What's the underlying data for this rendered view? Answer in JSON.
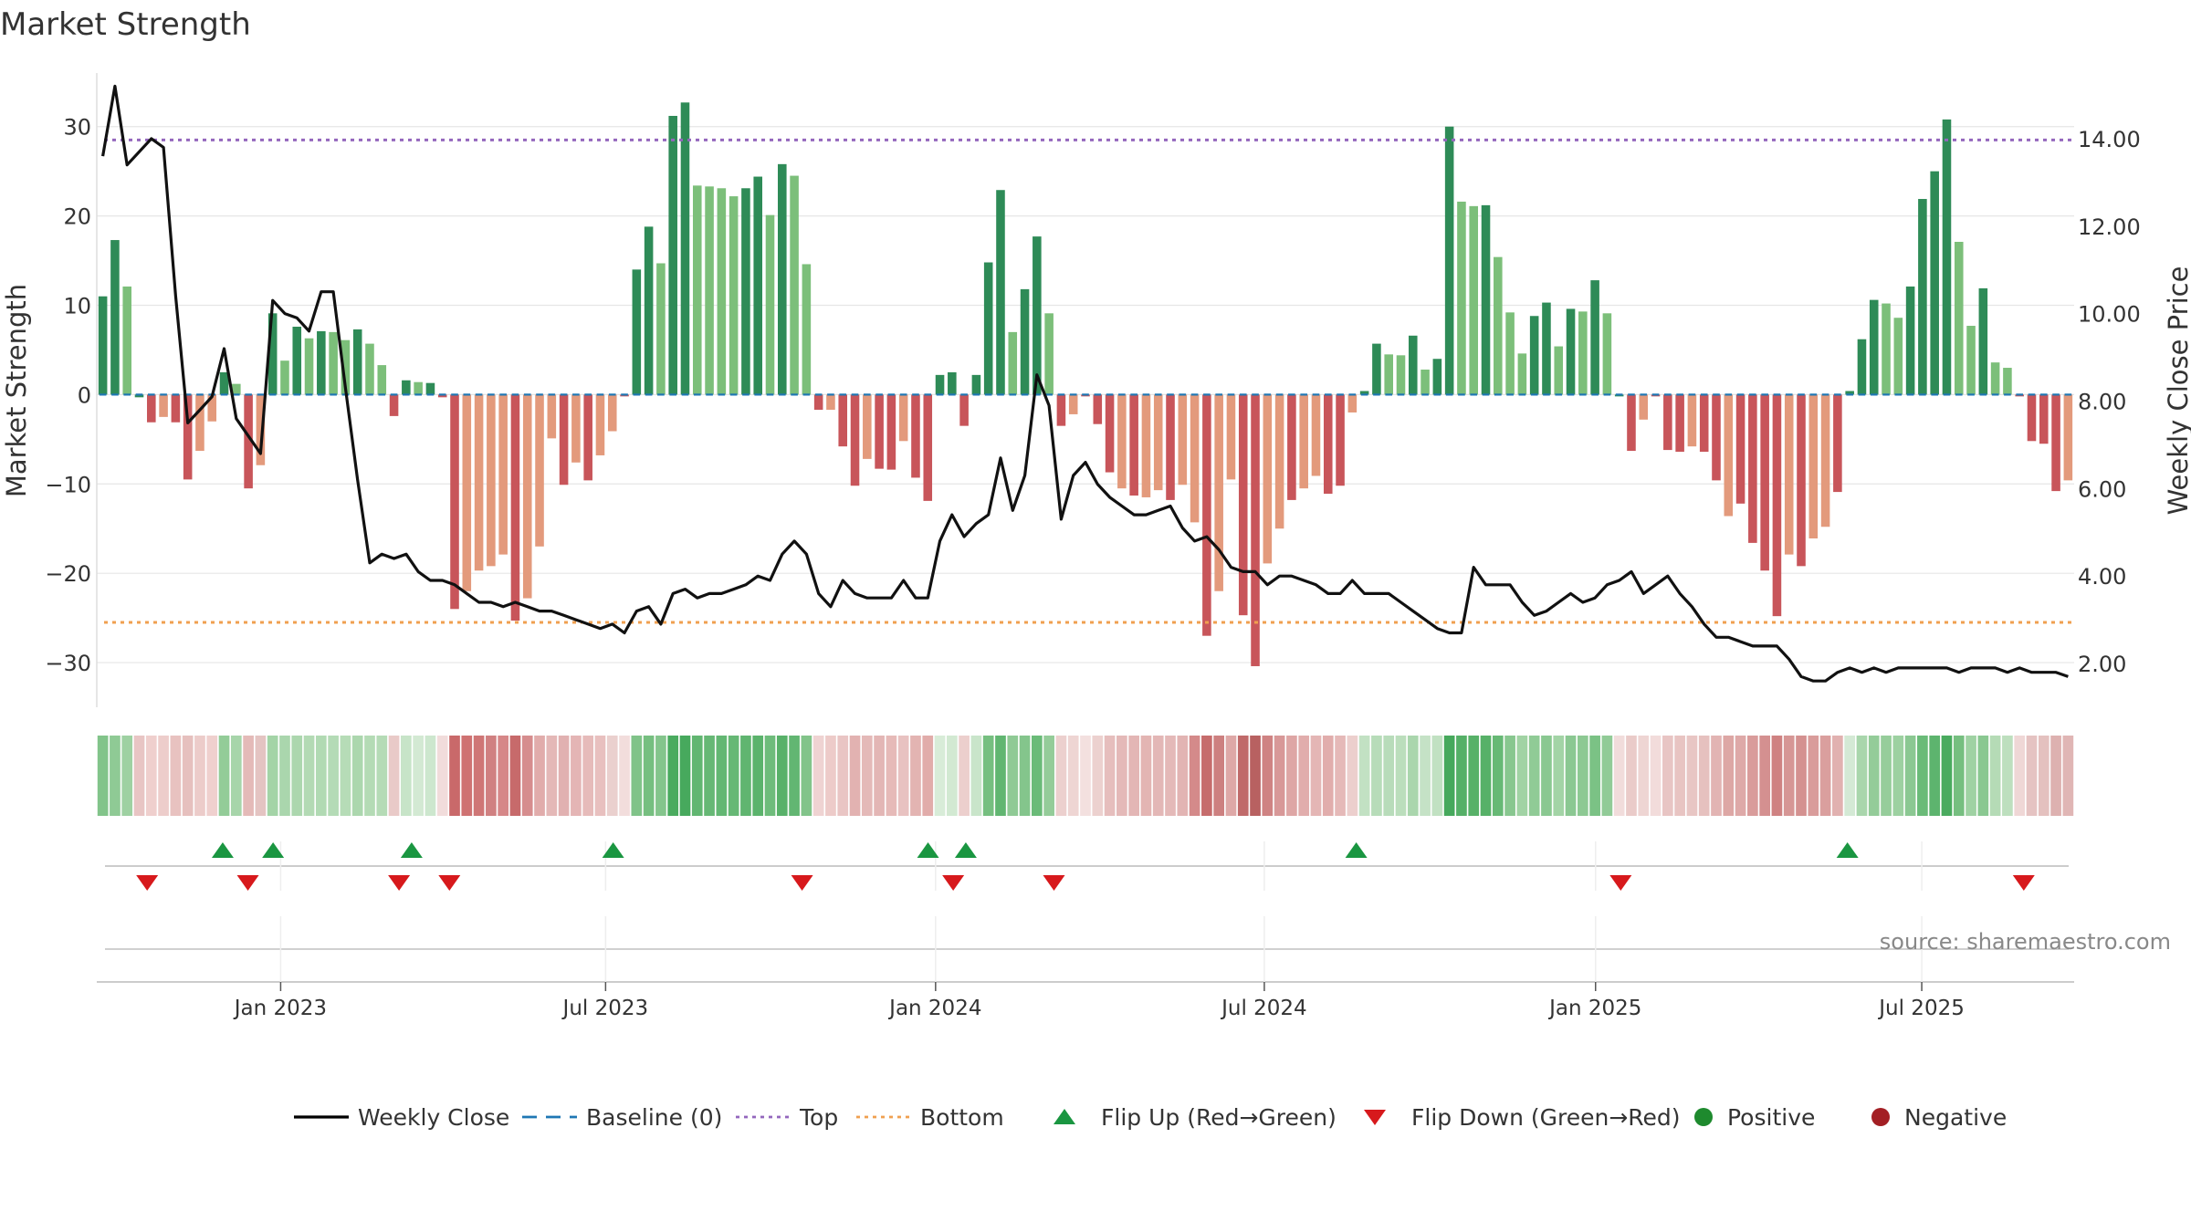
{
  "chart_data": {
    "type": "bar",
    "title": "Market Strength",
    "ylabel": "Market Strength",
    "y2label": "Weekly Close Price",
    "ylim": [
      -35,
      36
    ],
    "y2lim": [
      1.0,
      15.5
    ],
    "yticks": [
      -30,
      -20,
      -10,
      0,
      10,
      20,
      30
    ],
    "ytick_labels": [
      "−30",
      "−20",
      "−10",
      "0",
      "10",
      "20",
      "30"
    ],
    "y2ticks": [
      2,
      4,
      6,
      8,
      10,
      12,
      14
    ],
    "y2tick_labels": [
      "2.00",
      "4.00",
      "6.00",
      "8.00",
      "10.00",
      "12.00",
      "14.00"
    ],
    "x_range_weeks": [
      0,
      157
    ],
    "xticks": [
      {
        "week": 14.6,
        "label": "Jan 2023"
      },
      {
        "week": 40.4,
        "label": "Jul 2023"
      },
      {
        "week": 66.6,
        "label": "Jan 2024"
      },
      {
        "week": 92.7,
        "label": "Jul 2024"
      },
      {
        "week": 119.0,
        "label": "Jan 2025"
      },
      {
        "week": 144.9,
        "label": "Jul 2025"
      }
    ],
    "top_level": 28.5,
    "bottom_level": -25.5,
    "baseline": 0,
    "strength": [
      11,
      17.3,
      12.1,
      -0.3,
      -3.1,
      -2.5,
      -3.1,
      -9.5,
      -6.3,
      -3,
      2.5,
      1.2,
      -10.5,
      -7.9,
      9.1,
      3.8,
      7.6,
      6.3,
      7.1,
      7,
      6.1,
      7.3,
      5.7,
      3.3,
      -2.4,
      1.6,
      1.4,
      1.3,
      -0.3,
      -24,
      -22,
      -19.7,
      -19.2,
      -17.9,
      -25.3,
      -22.8,
      -17,
      -4.9,
      -10.1,
      -7.6,
      -9.6,
      -6.8,
      -4.1,
      -0.2,
      14,
      18.8,
      14.7,
      31.2,
      32.7,
      23.4,
      23.3,
      23.1,
      22.2,
      23.1,
      24.4,
      20.1,
      25.8,
      24.5,
      14.6,
      -1.7,
      -1.7,
      -5.8,
      -10.2,
      -7.2,
      -8.3,
      -8.4,
      -5.2,
      -9.3,
      -11.9,
      2.2,
      2.5,
      -3.5,
      2.2,
      14.8,
      22.9,
      7,
      11.8,
      17.7,
      9.1,
      -3.5,
      -2.2,
      -0.2,
      -3.3,
      -8.7,
      -10.5,
      -11.3,
      -11.5,
      -10.7,
      -11.8,
      -10.1,
      -14.3,
      -27,
      -22,
      -9.5,
      -24.7,
      -30.4,
      -18.9,
      -15,
      -11.8,
      -10.5,
      -9.1,
      -11.1,
      -10.2,
      -2,
      0.4,
      5.7,
      4.5,
      4.4,
      6.6,
      2.8,
      4,
      30,
      21.6,
      21.1,
      21.2,
      15.4,
      9.2,
      4.6,
      8.8,
      10.3,
      5.4,
      9.6,
      9.3,
      12.8,
      9.1,
      -0.2,
      -6.3,
      -2.8,
      -0.2,
      -6.2,
      -6.4,
      -5.8,
      -6.4,
      -9.6,
      -13.6,
      -12.2,
      -16.6,
      -19.7,
      -24.8,
      -17.9,
      -19.2,
      -16.1,
      -14.8,
      -10.9,
      0.4,
      6.2,
      10.6,
      10.2,
      8.6,
      12.1,
      21.9,
      25,
      30.8,
      17.1,
      7.7,
      11.9,
      3.6,
      3,
      -0.2,
      -5.2,
      -5.5,
      -10.8,
      -9.6
    ],
    "strength_colors": [
      "#2e8b57",
      "#2e8b57",
      "#7cbf7a",
      "#2e8b57",
      "#c8555a",
      "#e39a7c",
      "#c8555a",
      "#c8555a",
      "#e39a7c",
      "#e39a7c",
      "#2e8b57",
      "#7cbf7a",
      "#c8555a",
      "#e39a7c",
      "#2e8b57",
      "#7cbf7a",
      "#2e8b57",
      "#7cbf7a",
      "#2e8b57",
      "#7cbf7a",
      "#7cbf7a",
      "#2e8b57",
      "#7cbf7a",
      "#7cbf7a",
      "#c8555a",
      "#2e8b57",
      "#7cbf7a",
      "#2e8b57",
      "#c8555a",
      "#c8555a",
      "#e39a7c",
      "#e39a7c",
      "#e39a7c",
      "#e39a7c",
      "#c8555a",
      "#e39a7c",
      "#e39a7c",
      "#e39a7c",
      "#c8555a",
      "#e39a7c",
      "#c8555a",
      "#e39a7c",
      "#e39a7c",
      "#c8555a",
      "#2e8b57",
      "#2e8b57",
      "#7cbf7a",
      "#2e8b57",
      "#2e8b57",
      "#7cbf7a",
      "#7cbf7a",
      "#7cbf7a",
      "#7cbf7a",
      "#2e8b57",
      "#2e8b57",
      "#7cbf7a",
      "#2e8b57",
      "#7cbf7a",
      "#7cbf7a",
      "#c8555a",
      "#e39a7c",
      "#c8555a",
      "#c8555a",
      "#e39a7c",
      "#c8555a",
      "#c8555a",
      "#e39a7c",
      "#c8555a",
      "#c8555a",
      "#2e8b57",
      "#2e8b57",
      "#c8555a",
      "#2e8b57",
      "#2e8b57",
      "#2e8b57",
      "#7cbf7a",
      "#2e8b57",
      "#2e8b57",
      "#7cbf7a",
      "#c8555a",
      "#e39a7c",
      "#c8555a",
      "#c8555a",
      "#c8555a",
      "#e39a7c",
      "#c8555a",
      "#e39a7c",
      "#e39a7c",
      "#c8555a",
      "#e39a7c",
      "#e39a7c",
      "#c8555a",
      "#e39a7c",
      "#e39a7c",
      "#c8555a",
      "#c8555a",
      "#e39a7c",
      "#e39a7c",
      "#c8555a",
      "#e39a7c",
      "#e39a7c",
      "#c8555a",
      "#c8555a",
      "#e39a7c",
      "#2e8b57",
      "#2e8b57",
      "#7cbf7a",
      "#7cbf7a",
      "#2e8b57",
      "#7cbf7a",
      "#2e8b57",
      "#2e8b57",
      "#7cbf7a",
      "#7cbf7a",
      "#2e8b57",
      "#7cbf7a",
      "#7cbf7a",
      "#7cbf7a",
      "#2e8b57",
      "#2e8b57",
      "#7cbf7a",
      "#2e8b57",
      "#7cbf7a",
      "#2e8b57",
      "#7cbf7a",
      "#2e8b57",
      "#c8555a",
      "#e39a7c",
      "#c8555a",
      "#c8555a",
      "#c8555a",
      "#e39a7c",
      "#c8555a",
      "#c8555a",
      "#e39a7c",
      "#c8555a",
      "#c8555a",
      "#c8555a",
      "#c8555a",
      "#e39a7c",
      "#c8555a",
      "#e39a7c",
      "#e39a7c",
      "#c8555a",
      "#2e8b57",
      "#2e8b57",
      "#2e8b57",
      "#7cbf7a",
      "#7cbf7a",
      "#2e8b57",
      "#2e8b57",
      "#2e8b57",
      "#2e8b57",
      "#7cbf7a",
      "#7cbf7a",
      "#2e8b57",
      "#7cbf7a",
      "#7cbf7a",
      "#c8555a",
      "#c8555a",
      "#c8555a",
      "#c8555a",
      "#e39a7c"
    ],
    "close": [
      13.6,
      15.2,
      13.4,
      13.7,
      14,
      13.8,
      10.4,
      7.5,
      7.8,
      8.1,
      9.2,
      7.6,
      7.2,
      6.8,
      10.3,
      10,
      9.9,
      9.6,
      10.5,
      10.5,
      8.3,
      6.2,
      4.3,
      4.5,
      4.4,
      4.5,
      4.1,
      3.9,
      3.9,
      3.8,
      3.6,
      3.4,
      3.4,
      3.3,
      3.4,
      3.3,
      3.2,
      3.2,
      3.1,
      3,
      2.9,
      2.8,
      2.9,
      2.7,
      3.2,
      3.3,
      2.9,
      3.6,
      3.7,
      3.5,
      3.6,
      3.6,
      3.7,
      3.8,
      4,
      3.9,
      4.5,
      4.8,
      4.5,
      3.6,
      3.3,
      3.9,
      3.6,
      3.5,
      3.5,
      3.5,
      3.9,
      3.5,
      3.5,
      4.8,
      5.4,
      4.9,
      5.2,
      5.4,
      6.7,
      5.5,
      6.3,
      8.6,
      7.9,
      5.3,
      6.3,
      6.6,
      6.1,
      5.8,
      5.6,
      5.4,
      5.4,
      5.5,
      5.6,
      5.1,
      4.8,
      4.9,
      4.6,
      4.2,
      4.1,
      4.1,
      3.8,
      4,
      4,
      3.9,
      3.8,
      3.6,
      3.6,
      3.9,
      3.6,
      3.6,
      3.6,
      3.4,
      3.2,
      3,
      2.8,
      2.7,
      2.7,
      4.2,
      3.8,
      3.8,
      3.8,
      3.4,
      3.1,
      3.2,
      3.4,
      3.6,
      3.4,
      3.5,
      3.8,
      3.9,
      4.1,
      3.6,
      3.8,
      4,
      3.6,
      3.3,
      2.9,
      2.6,
      2.6,
      2.5,
      2.4,
      2.4,
      2.4,
      2.1,
      1.7,
      1.6,
      1.6,
      1.8,
      1.9,
      1.8,
      1.9,
      1.8,
      1.9,
      1.9,
      1.9,
      1.9,
      1.9,
      1.8,
      1.9,
      1.9,
      1.9,
      1.8,
      1.9,
      1.8,
      1.8,
      1.8,
      1.7
    ],
    "heat_colors": [
      "#82c48a",
      "#8fca95",
      "#9ed1a2",
      "#e8c5c4",
      "#efcfcd",
      "#edcdcb",
      "#e8c2c0",
      "#e6c0be",
      "#ecccca",
      "#efd0ce",
      "#93cc98",
      "#a7d5aa",
      "#e4bab8",
      "#e4c4c2",
      "#a4d4a7",
      "#aad6ad",
      "#acd7ae",
      "#b3dab4",
      "#b1dab3",
      "#b4dbb6",
      "#b6dcb7",
      "#acd7ae",
      "#b4dbb5",
      "#b5dbb6",
      "#e9cac8",
      "#c7e4c8",
      "#d3e9d3",
      "#cde7ce",
      "#f1dcdb",
      "#c9696a",
      "#cf7272",
      "#cf7676",
      "#d08081",
      "#d68788",
      "#c76a6b",
      "#d68d8e",
      "#e1acab",
      "#e4b8b7",
      "#e1b1b1",
      "#e4b5b5",
      "#e6bbba",
      "#e8c0bf",
      "#ead0ce",
      "#f2dddc",
      "#80c389",
      "#76bf80",
      "#84c58c",
      "#4aab5f",
      "#47a95d",
      "#61b671",
      "#66b875",
      "#63b773",
      "#66b875",
      "#60b570",
      "#5bb36c",
      "#6ebc7b",
      "#58b169",
      "#62b672",
      "#82c48a",
      "#efd3d2",
      "#edcbc9",
      "#e9c5c4",
      "#e2b2b1",
      "#e4b9b8",
      "#e3b6b5",
      "#e6bab8",
      "#e8c2c1",
      "#e3b4b2",
      "#e1acaa",
      "#d8ecd8",
      "#d2e9d2",
      "#eccfcd",
      "#c9e5ca",
      "#76bf80",
      "#61b671",
      "#8fca95",
      "#84c58c",
      "#6abb78",
      "#94cc99",
      "#ecd0ce",
      "#eed5d3",
      "#f3e0df",
      "#ecd1cf",
      "#e6bebd",
      "#e4b9b8",
      "#e3b6b5",
      "#e3b5b3",
      "#e3b7b6",
      "#e4b9b8",
      "#e2b4b3",
      "#d48a8a",
      "#c66c6c",
      "#cd8080",
      "#dea8a7",
      "#c06a6a",
      "#b86161",
      "#cf8383",
      "#d89898",
      "#dea6a5",
      "#e1adac",
      "#e4b6b5",
      "#e1adac",
      "#e5b9b8",
      "#eccfcd",
      "#c2e1c3",
      "#b7dcb9",
      "#b8dcba",
      "#bbdebc",
      "#aad6ad",
      "#c5e2c6",
      "#c1e1c2",
      "#46a95c",
      "#55b067",
      "#57b168",
      "#57b168",
      "#67b975",
      "#88c78f",
      "#a1d3a4",
      "#90cb96",
      "#8ac891",
      "#a3d4a6",
      "#8bc892",
      "#8dc993",
      "#7bc285",
      "#91cb97",
      "#f1dcdb",
      "#eacbc9",
      "#eed5d3",
      "#f2dcdb",
      "#e8c5c4",
      "#e8c4c2",
      "#e8c6c4",
      "#e6c1bf",
      "#e2b4b3",
      "#dda7a5",
      "#dea9a8",
      "#d99c9b",
      "#d49090",
      "#cf8282",
      "#d69695",
      "#d49190",
      "#d99c9b",
      "#da9f9e",
      "#e1b1b0",
      "#d4e9d5",
      "#a9d6ac",
      "#94cc99",
      "#96cd9b",
      "#9dd1a1",
      "#8bc892",
      "#6abb78",
      "#5db46e",
      "#4aab5f",
      "#76bf80",
      "#9fd2a3",
      "#8ac891",
      "#b5dbb6",
      "#bddfbe",
      "#efd7d6",
      "#e5c3c2",
      "#e4c1bf",
      "#ddb1b0",
      "#e0b6b5"
    ],
    "flip_up_weeks": [
      10,
      14,
      25,
      41,
      66,
      69,
      100,
      139
    ],
    "flip_down_weeks": [
      4,
      12,
      24,
      28,
      56,
      68,
      76,
      121,
      153
    ],
    "source": "source: sharemaestro.com",
    "legend": [
      {
        "label": "Weekly Close",
        "kind": "line",
        "color": "#000000"
      },
      {
        "label": "Baseline (0)",
        "kind": "dash",
        "color": "#1f77b4"
      },
      {
        "label": "Top",
        "kind": "dot",
        "color": "#9467bd"
      },
      {
        "label": "Bottom",
        "kind": "dot",
        "color": "#f0a050"
      },
      {
        "label": "Flip Up (Red→Green)",
        "kind": "up",
        "color": "#1a9641"
      },
      {
        "label": "Flip Down (Green→Red)",
        "kind": "down",
        "color": "#d7191c"
      },
      {
        "label": "Positive",
        "kind": "circle",
        "color": "#1e8a2e"
      },
      {
        "label": "Negative",
        "kind": "circle",
        "color": "#a31f24"
      }
    ]
  }
}
